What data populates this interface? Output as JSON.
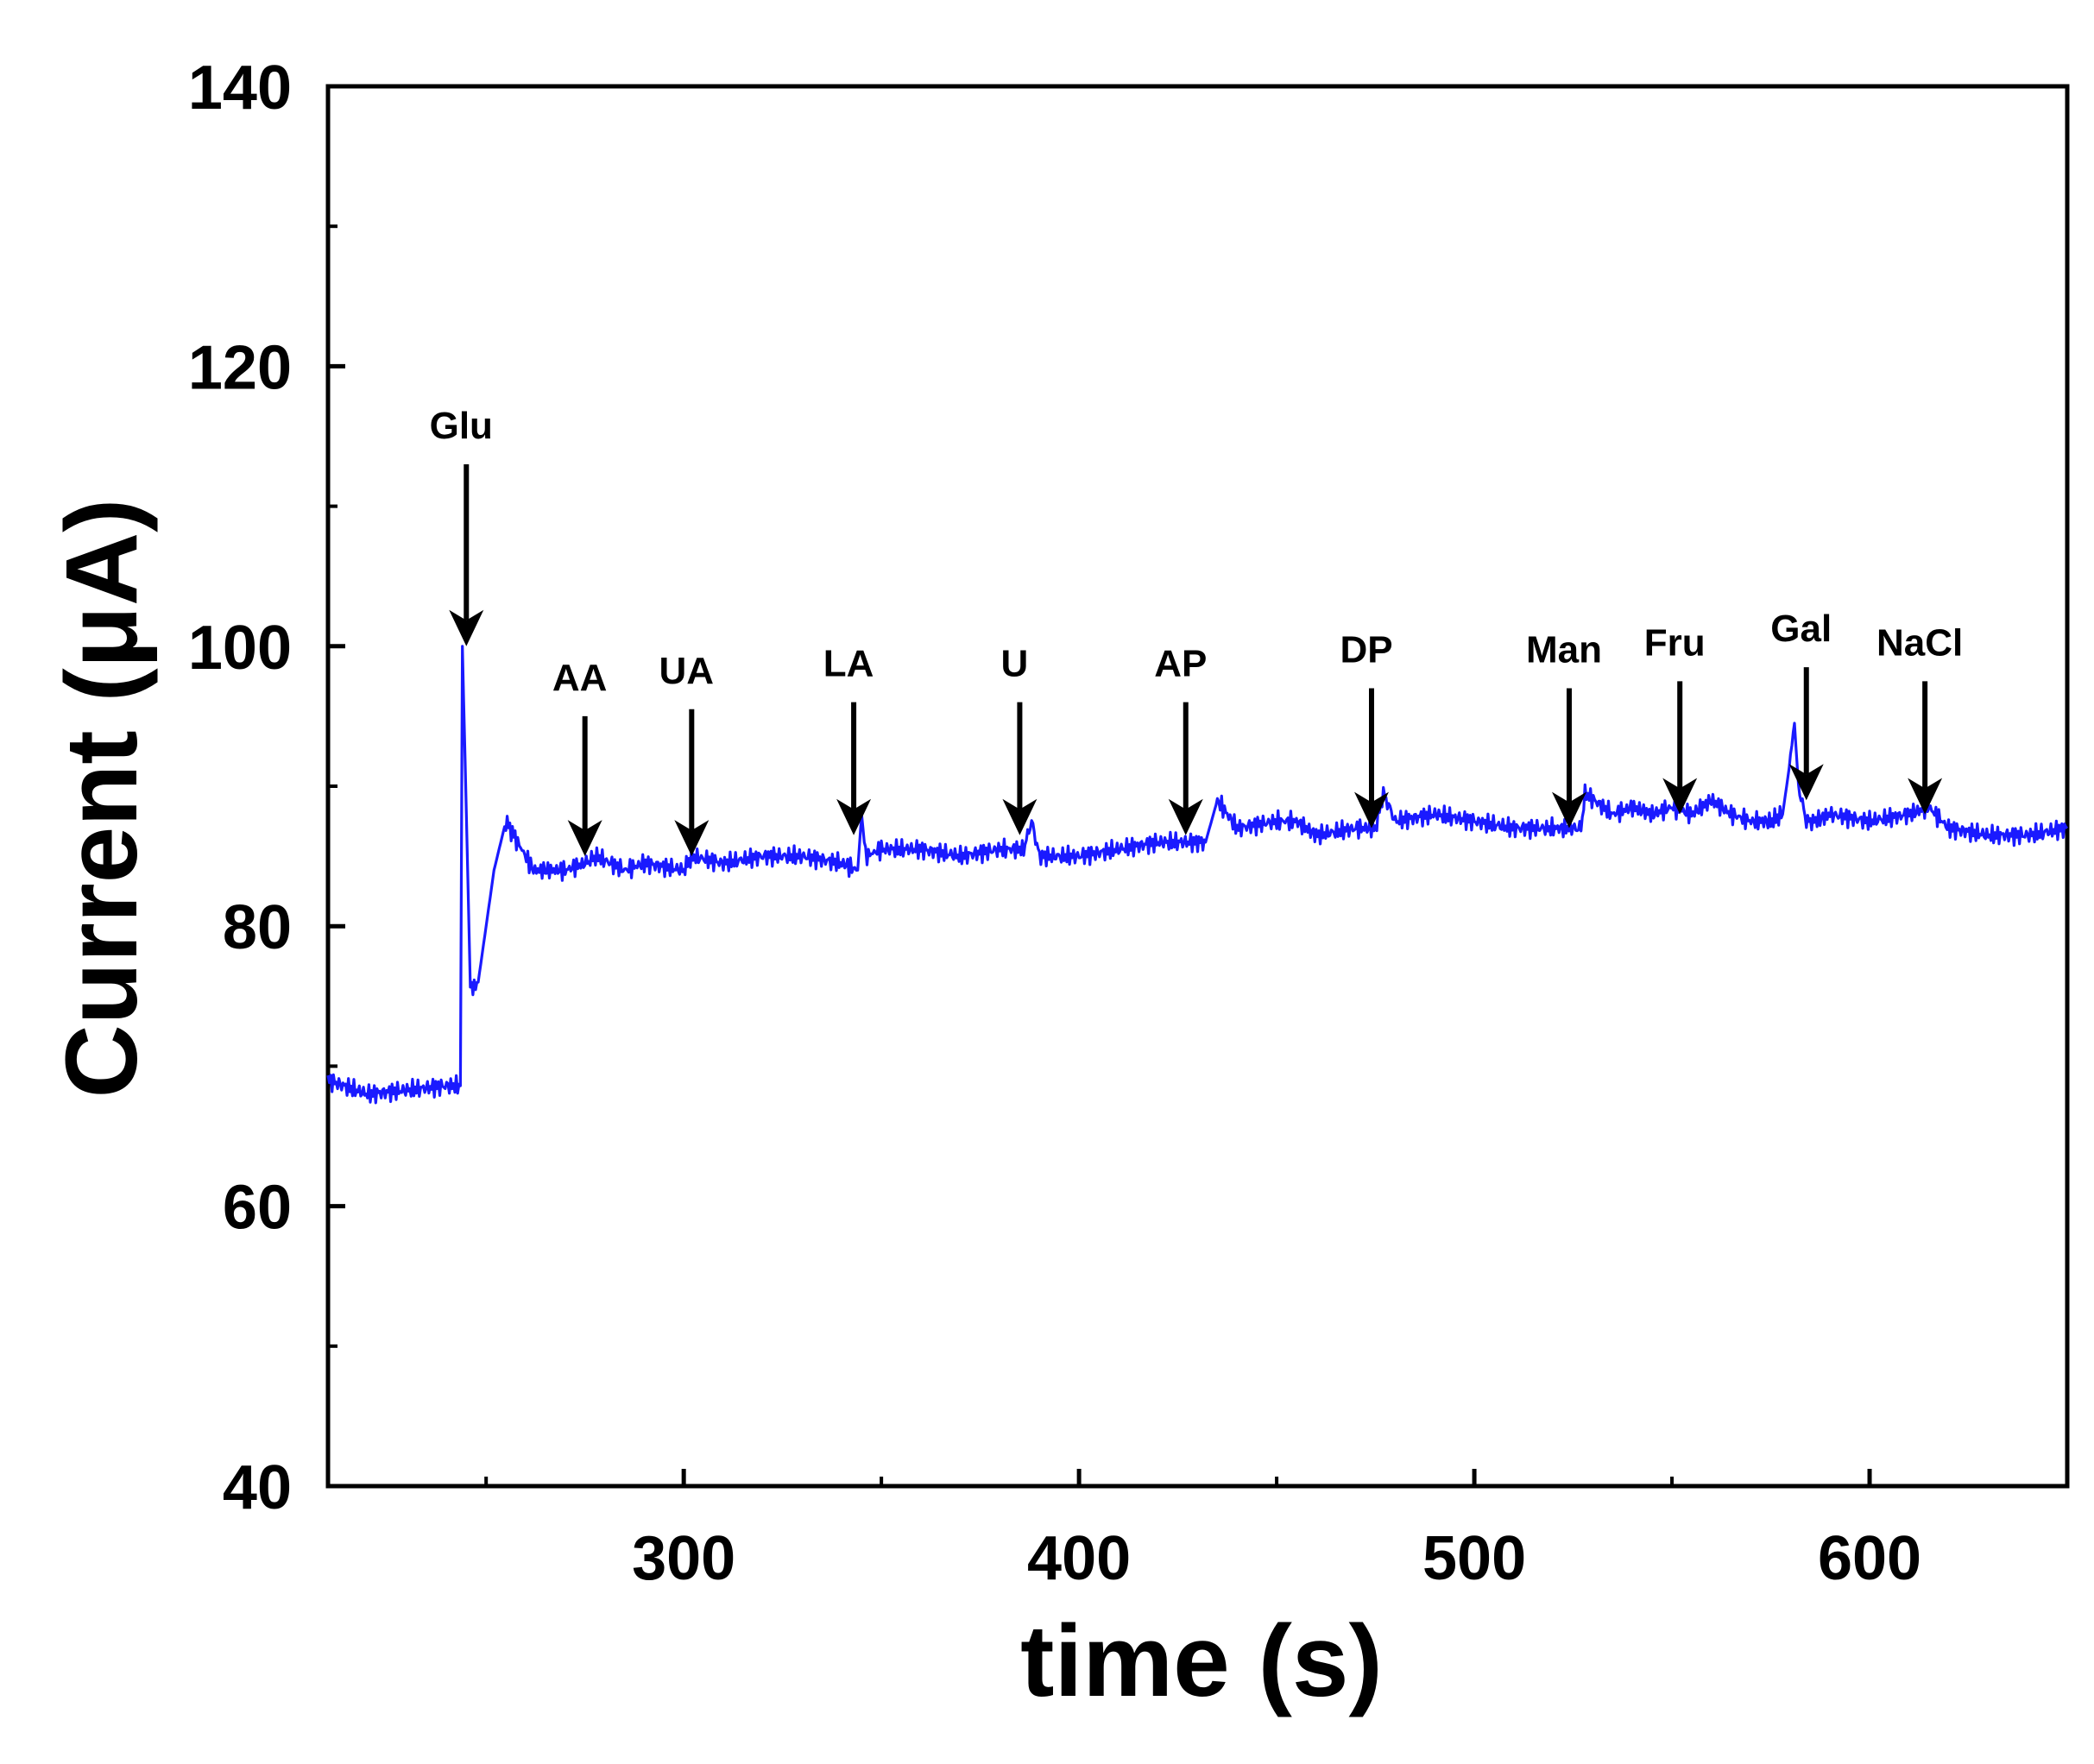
{
  "chart_data": {
    "type": "line",
    "xlabel": "time (s)",
    "ylabel": "Current (μA)",
    "xlim": [
      210,
      650
    ],
    "ylim": [
      40,
      140
    ],
    "x_ticks": [
      300,
      400,
      500,
      600
    ],
    "x_minor_ticks": [
      250,
      350,
      450,
      550
    ],
    "y_ticks": [
      40,
      60,
      80,
      100,
      120,
      140
    ],
    "y_minor_ticks": [
      50,
      70,
      90,
      110,
      130
    ],
    "grid": false,
    "line_color": "#1a1aff",
    "annotation_color": "#000000",
    "series": [
      {
        "x": [
          210,
          220,
          230,
          240,
          243.5,
          244,
          245,
          246,
          247,
          248,
          250,
          252,
          255,
          258,
          262,
          266,
          270,
          275,
          278,
          285,
          290,
          300,
          302,
          310,
          320,
          330,
          340,
          344,
          345,
          346,
          350,
          360,
          370,
          380,
          386,
          388,
          390,
          400,
          410,
          420,
          430,
          432,
          435,
          440,
          450,
          455,
          460,
          470,
          475,
          477,
          480,
          490,
          500,
          510,
          520,
          525,
          527,
          528,
          535,
          540,
          545,
          550,
          555,
          560,
          565,
          570,
          575,
          578,
          580,
          581,
          582,
          584,
          586,
          590,
          600,
          610,
          615,
          620,
          630,
          640,
          650
        ],
        "y": [
          69,
          68,
          68.3,
          68.6,
          68.6,
          100,
          88,
          76,
          75.5,
          76,
          80,
          84,
          87.5,
          86,
          84,
          84,
          84,
          84.5,
          85,
          84,
          84.5,
          84,
          85,
          84.5,
          85,
          85,
          84.5,
          84,
          88,
          85,
          85.5,
          85.5,
          85,
          85.5,
          85.5,
          87.5,
          85,
          85,
          85.5,
          86,
          86,
          86,
          89,
          87,
          87.5,
          87.5,
          86.5,
          87,
          87,
          89.5,
          87.5,
          88,
          87.5,
          87,
          87,
          87,
          87,
          89.5,
          88,
          88.5,
          88,
          88.5,
          88,
          89,
          88,
          87.5,
          87.5,
          88,
          92,
          94.5,
          90,
          87.5,
          87.5,
          88,
          87.5,
          88,
          88.5,
          87,
          86.5,
          86.5,
          87
        ]
      }
    ],
    "annotations": [
      {
        "label": "Glu",
        "x": 245,
        "y_top": 113,
        "y_tip": 100
      },
      {
        "label": "AA",
        "x": 275,
        "y_top": 95,
        "y_tip": 85
      },
      {
        "label": "UA",
        "x": 302,
        "y_top": 95.5,
        "y_tip": 85
      },
      {
        "label": "LA",
        "x": 343,
        "y_top": 96,
        "y_tip": 86.5
      },
      {
        "label": "U",
        "x": 385,
        "y_top": 96,
        "y_tip": 86.5
      },
      {
        "label": "AP",
        "x": 427,
        "y_top": 96,
        "y_tip": 86.5
      },
      {
        "label": "DP",
        "x": 474,
        "y_top": 97,
        "y_tip": 87
      },
      {
        "label": "Man",
        "x": 524,
        "y_top": 97,
        "y_tip": 87
      },
      {
        "label": "Fru",
        "x": 552,
        "y_top": 97.5,
        "y_tip": 88
      },
      {
        "label": "Gal",
        "x": 584,
        "y_top": 98.5,
        "y_tip": 89
      },
      {
        "label": "NaCl",
        "x": 614,
        "y_top": 97.5,
        "y_tip": 88
      }
    ]
  }
}
